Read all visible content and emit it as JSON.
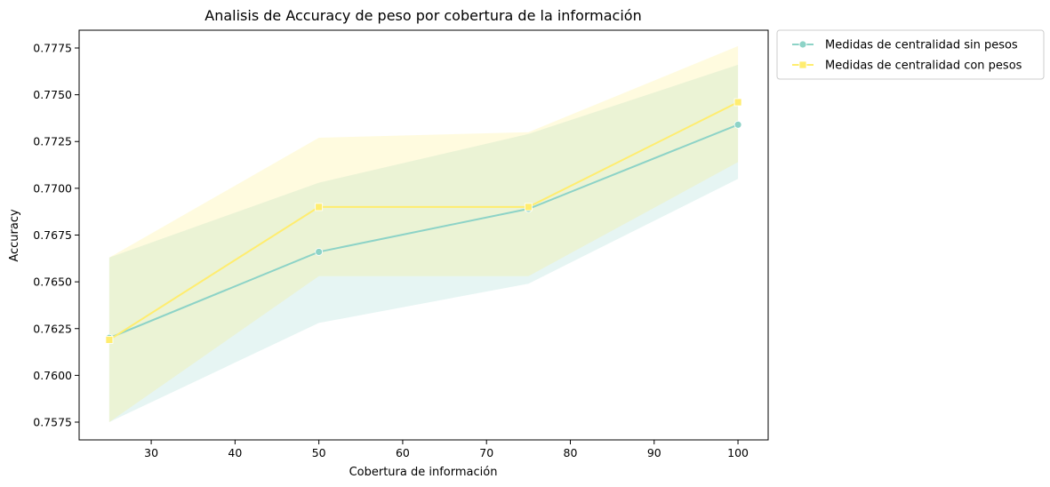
{
  "chart_data": {
    "type": "line",
    "title": "Analisis de Accuracy de peso por cobertura de la información",
    "xlabel": "Cobertura de información",
    "ylabel": "Accuracy",
    "x": [
      25,
      50,
      75,
      100
    ],
    "xlim": [
      21.4,
      103.6
    ],
    "ylim": [
      0.75655,
      0.77845
    ],
    "xticks": [
      30,
      40,
      50,
      60,
      70,
      80,
      90,
      100
    ],
    "yticks": [
      "0.7575",
      "0.7600",
      "0.7625",
      "0.7650",
      "0.7675",
      "0.7700",
      "0.7725",
      "0.7750",
      "0.7775"
    ],
    "grid": false,
    "legend_position": "outside top-right",
    "series": [
      {
        "name": "Medidas de centralidad sin pesos",
        "color": "#8dd3c7",
        "marker": "circle",
        "values": [
          0.762,
          0.7666,
          0.7689,
          0.7734
        ],
        "ci_lower": [
          0.7575,
          0.7628,
          0.7649,
          0.7705
        ],
        "ci_upper": [
          0.7663,
          0.7703,
          0.7729,
          0.7766
        ]
      },
      {
        "name": "Medidas de centralidad con pesos",
        "color": "#ffed6f",
        "marker": "square",
        "values": [
          0.7619,
          0.769,
          0.769,
          0.7746
        ],
        "ci_lower": [
          0.7575,
          0.7653,
          0.7653,
          0.7714
        ],
        "ci_upper": [
          0.7663,
          0.7727,
          0.773,
          0.7776
        ]
      }
    ]
  }
}
